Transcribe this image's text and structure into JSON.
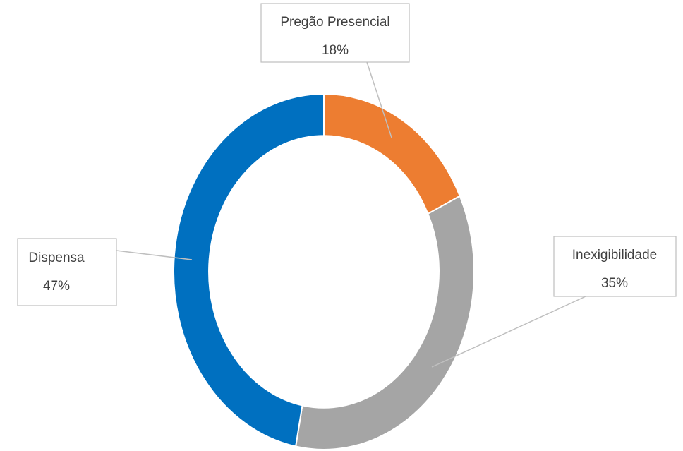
{
  "chart_data": {
    "type": "donut",
    "categories": [
      "Pregão Presencial",
      "Inexigibilidade",
      "Dispensa"
    ],
    "values": [
      18,
      35,
      47
    ],
    "value_labels": [
      "18%",
      "35%",
      "47%"
    ],
    "colors": [
      "#ed7d31",
      "#a5a5a5",
      "#0070c0"
    ]
  }
}
